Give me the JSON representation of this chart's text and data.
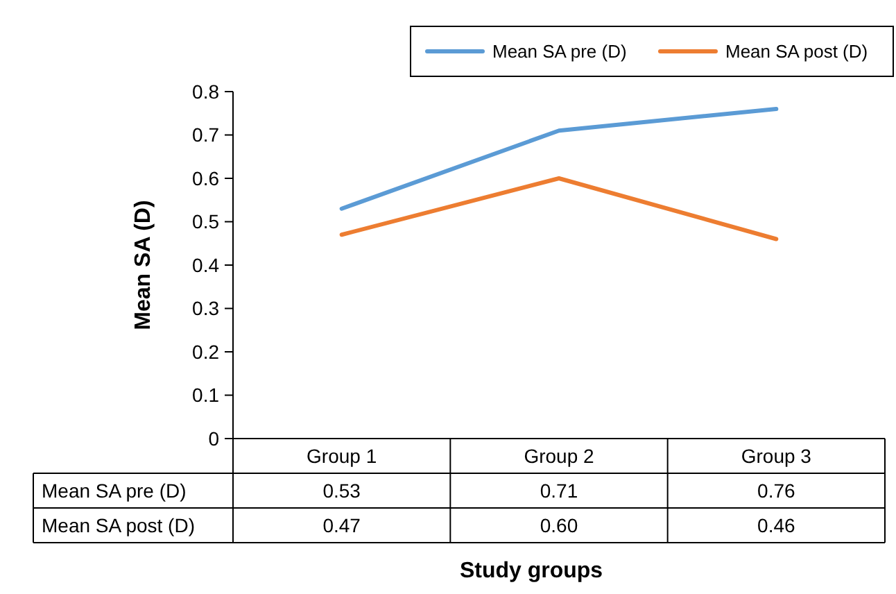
{
  "chart_data": {
    "type": "line",
    "ylabel": "Mean SA (D)",
    "xlabel": "Study groups",
    "categories": [
      "Group 1",
      "Group 2",
      "Group 3"
    ],
    "ylim": [
      0,
      0.8
    ],
    "yticks": [
      0,
      0.1,
      0.2,
      0.3,
      0.4,
      0.5,
      0.6,
      0.7,
      0.8
    ],
    "legend": "top right",
    "series": [
      {
        "name": "Mean SA pre (D)",
        "color": "#5b9bd5",
        "values": [
          0.53,
          0.71,
          0.76
        ],
        "value_labels": [
          "0.53",
          "0.71",
          "0.76"
        ]
      },
      {
        "name": "Mean SA post (D)",
        "color": "#ed7d31",
        "values": [
          0.47,
          0.6,
          0.46
        ],
        "value_labels": [
          "0.47",
          "0.60",
          "0.46"
        ]
      }
    ]
  }
}
